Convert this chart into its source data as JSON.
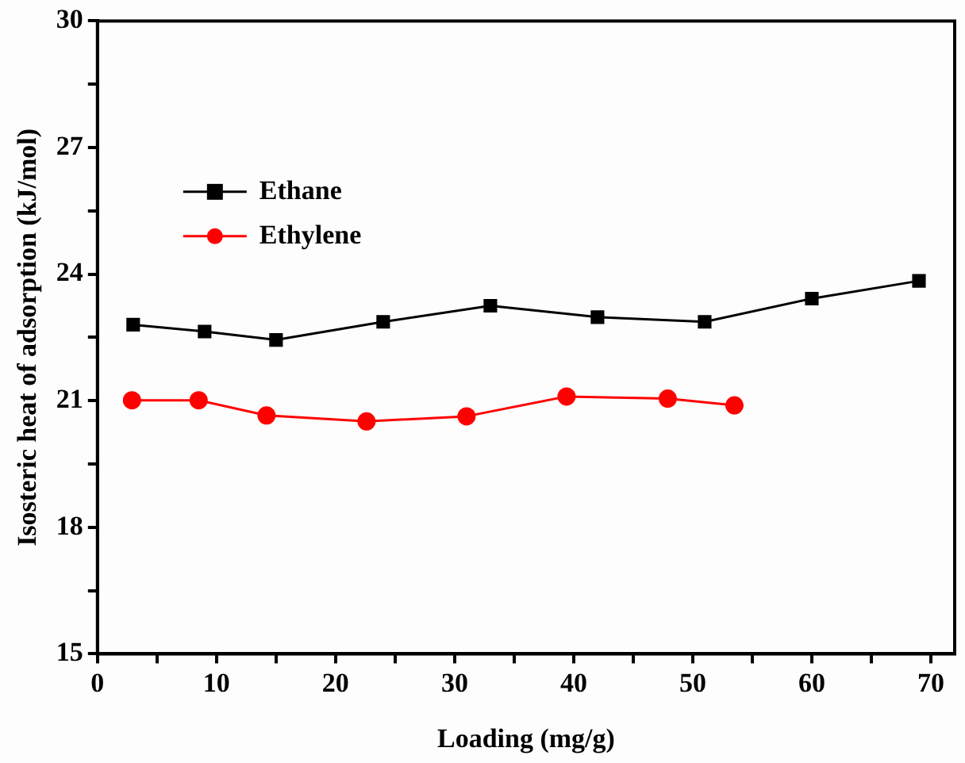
{
  "chart_data": {
    "type": "line",
    "xlabel": "Loading (mg/g)",
    "ylabel": "Isosteric heat of adsorption (kJ/mol)",
    "xlim": [
      0,
      72
    ],
    "xticks": [
      0,
      {
        "value": 5,
        "label": null
      },
      10,
      {
        "value": 15,
        "label": null
      },
      20,
      {
        "value": 25,
        "label": null
      },
      30,
      {
        "value": 35,
        "label": null
      },
      40,
      {
        "value": 45,
        "label": null
      },
      50,
      {
        "value": 55,
        "label": null
      },
      60,
      {
        "value": 65,
        "label": null
      },
      70
    ],
    "ylim": [
      15,
      30
    ],
    "yticks": [
      15,
      {
        "value": 16.5,
        "label": null
      },
      18,
      {
        "value": 19.5,
        "label": null
      },
      21,
      {
        "value": 22.5,
        "label": null
      },
      24,
      {
        "value": 25.5,
        "label": null
      },
      27,
      {
        "value": 28.5,
        "label": null
      },
      30
    ],
    "grid": false,
    "legend": "top left",
    "line_style": "solid",
    "series": [
      {
        "name": "Ethane",
        "color": "#000000",
        "marker": "square",
        "x": [
          3,
          9,
          15,
          24,
          33,
          42,
          51,
          60,
          69
        ],
        "values": [
          22.8,
          22.64,
          22.44,
          22.87,
          23.25,
          22.98,
          22.87,
          23.42,
          23.84
        ]
      },
      {
        "name": "Ethylene",
        "color": "#ff0000",
        "marker": "circle",
        "x": [
          2.9,
          8.5,
          14.2,
          22.6,
          31,
          39.4,
          47.9,
          53.5
        ],
        "values": [
          21.01,
          21.01,
          20.65,
          20.51,
          20.63,
          21.1,
          21.05,
          20.89
        ]
      }
    ]
  }
}
